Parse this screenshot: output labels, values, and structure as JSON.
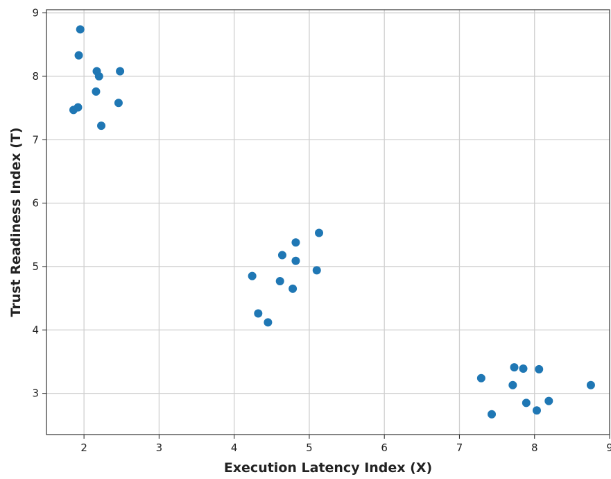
{
  "chart_data": {
    "type": "scatter",
    "title": "",
    "xlabel": "Execution Latency Index (X)",
    "ylabel": "Trust Readiness Index (T)",
    "xlim": [
      1.5,
      9.0
    ],
    "ylim": [
      2.35,
      9.05
    ],
    "xticks": [
      "2",
      "3",
      "4",
      "5",
      "6",
      "7",
      "8",
      "9"
    ],
    "yticks": [
      "3",
      "4",
      "5",
      "6",
      "7",
      "8",
      "9"
    ],
    "grid": true,
    "marker_color": "#1f77b4",
    "series": [
      {
        "x": [
          1.95,
          1.93,
          2.17,
          2.2,
          2.48,
          2.16,
          2.46,
          1.86,
          1.92,
          2.23,
          5.13,
          4.82,
          4.64,
          4.82,
          4.24,
          5.1,
          4.61,
          4.78,
          4.32,
          4.45,
          7.73,
          7.85,
          8.06,
          7.29,
          7.71,
          8.75,
          8.19,
          7.89,
          8.03,
          7.43
        ],
        "y": [
          8.74,
          8.33,
          8.08,
          8.0,
          8.08,
          7.76,
          7.58,
          7.47,
          7.51,
          7.22,
          5.53,
          5.38,
          5.18,
          5.09,
          4.85,
          4.94,
          4.77,
          4.65,
          4.26,
          4.12,
          3.41,
          3.39,
          3.38,
          3.24,
          3.13,
          3.13,
          2.88,
          2.85,
          2.73,
          2.67
        ]
      }
    ]
  }
}
